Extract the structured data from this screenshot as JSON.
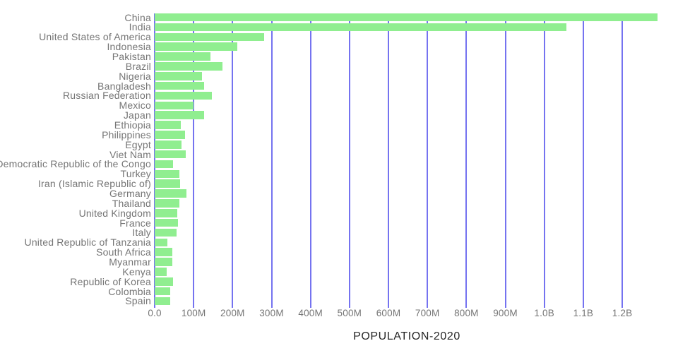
{
  "chart_data": {
    "type": "bar",
    "orientation": "horizontal",
    "title": "POPULATION-2020",
    "xlabel": "",
    "ylabel": "",
    "legend": false,
    "grid": "vertical",
    "categories": [
      "China",
      "India",
      "United States of America",
      "Indonesia",
      "Pakistan",
      "Brazil",
      "Nigeria",
      "Bangladesh",
      "Russian Federation",
      "Mexico",
      "Japan",
      "Ethiopia",
      "Philippines",
      "Egypt",
      "Viet Nam",
      "Democratic Republic of the Congo",
      "Turkey",
      "Iran (Islamic Republic of)",
      "Germany",
      "Thailand",
      "United Kingdom",
      "France",
      "Italy",
      "United Republic of Tanzania",
      "South Africa",
      "Myanmar",
      "Kenya",
      "Republic of Korea",
      "Colombia",
      "Spain"
    ],
    "values_millions": [
      1290.6,
      1056.6,
      281.7,
      211.5,
      142.3,
      174.8,
      122.3,
      127.7,
      146.4,
      98.9,
      126.8,
      66.2,
      78.0,
      68.8,
      79.9,
      47.1,
      63.2,
      65.5,
      81.4,
      62.7,
      58.9,
      59.4,
      57.0,
      33.5,
      45.0,
      45.5,
      30.9,
      47.4,
      39.6,
      40.7
    ],
    "x_axis": {
      "tick_labels": [
        "0.0",
        "100M",
        "200M",
        "300M",
        "400M",
        "500M",
        "600M",
        "700M",
        "800M",
        "900M",
        "1.0B",
        "1.1B",
        "1.2B"
      ],
      "tick_values_millions": [
        0,
        100,
        200,
        300,
        400,
        500,
        600,
        700,
        800,
        900,
        1000,
        1100,
        1200
      ]
    },
    "xlim_millions": [
      0,
      1343
    ],
    "colors": {
      "bar": "#90ee90",
      "gridline": "#7573f0",
      "axis_text": "#757575",
      "title_text": "#262626",
      "background": "#ffffff"
    }
  }
}
